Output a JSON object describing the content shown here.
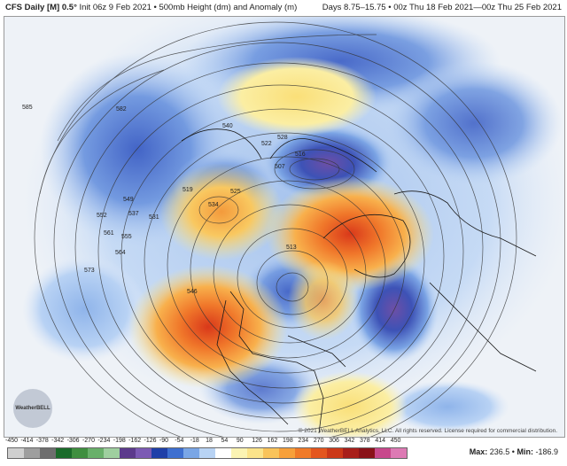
{
  "header": {
    "model": "CFS Daily [M] 0.5°",
    "init": "Init 06z 9 Feb 2021",
    "field": "500mb Height (dm) and Anomaly (m)",
    "valid": "Days 8.75–15.75 • 00z Thu 18 Feb 2021—00z Thu 25 Feb 2021"
  },
  "map": {
    "credit": "© 2021 WeatherBELL Analytics, LLC. All rights reserved. License required for commercial distribution.",
    "logo": "WeatherBELL",
    "contour_labels": [
      "585",
      "582",
      "540",
      "528",
      "516",
      "507",
      "519",
      "525",
      "534",
      "522",
      "513",
      "531",
      "546",
      "552",
      "561",
      "564",
      "573",
      "549",
      "555",
      "537"
    ]
  },
  "colorbar": {
    "labels": [
      "-450",
      "-414",
      "-378",
      "-342",
      "-306",
      "-270",
      "-234",
      "-198",
      "-162",
      "-126",
      "-90",
      "-54",
      "-18",
      "18",
      "54",
      "90",
      "126",
      "162",
      "198",
      "234",
      "270",
      "306",
      "342",
      "378",
      "414",
      "450"
    ],
    "colors": [
      "#cfcfcf",
      "#9e9e9e",
      "#6e6e6e",
      "#1a6b2a",
      "#3f8f3f",
      "#69b06a",
      "#9fcf9f",
      "#5c3a8c",
      "#7c5ab4",
      "#1f3fa8",
      "#3e6fd0",
      "#7aa6e6",
      "#b8d3f4",
      "#ffffff",
      "#fbf3b3",
      "#fbe38a",
      "#f9c35a",
      "#f7a03a",
      "#f07a28",
      "#e4561e",
      "#cc3818",
      "#a81e1a",
      "#8a1219",
      "#c8488c",
      "#dd7ab4"
    ],
    "max_label": "Max:",
    "max_value": "236.5",
    "min_label": "Min:",
    "min_value": "-186.9"
  },
  "colors": {
    "ridge": "#e04a1a",
    "trough": "#3353b8",
    "background": "#eef2f7"
  }
}
